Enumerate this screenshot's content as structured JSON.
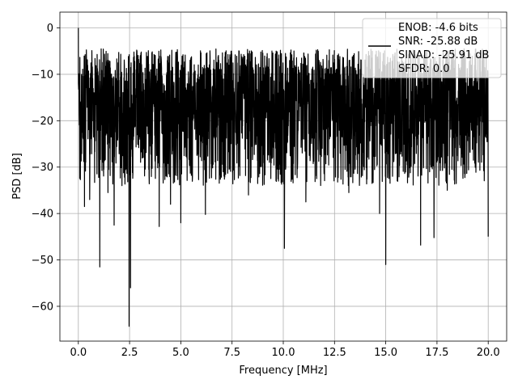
{
  "chart_data": {
    "type": "line",
    "title": "",
    "xlabel": "Frequency [MHz]",
    "ylabel": "PSD [dB]",
    "xlim": [
      -0.9,
      20.9
    ],
    "ylim": [
      -67.5,
      3.4
    ],
    "x_ticks": [
      0.0,
      2.5,
      5.0,
      7.5,
      10.0,
      12.5,
      15.0,
      17.5,
      20.0
    ],
    "x_tick_labels": [
      "0.0",
      "2.5",
      "5.0",
      "7.5",
      "10.0",
      "12.5",
      "15.0",
      "17.5",
      "20.0"
    ],
    "y_ticks": [
      0,
      -10,
      -20,
      -30,
      -40,
      -50,
      -60
    ],
    "y_tick_labels": [
      "0",
      "−10",
      "−20",
      "−30",
      "−40",
      "−50",
      "−60"
    ],
    "grid": true,
    "legend_position": "top-right",
    "legend_lines": [
      "ENOB: -4.6 bits",
      "SNR: -25.88 dB",
      "SINAD: -25.91 dB",
      "SFDR: 0.0"
    ],
    "series": [
      {
        "color": "#000000",
        "x_range": [
          0.0,
          20.0
        ],
        "floor_band_db": [
          -24,
          -8
        ],
        "peak_db": 0.0,
        "deep_nulls": [
          {
            "x": 1.05,
            "y": -51.5
          },
          {
            "x": 1.75,
            "y": -42.5
          },
          {
            "x": 2.48,
            "y": -64.3
          },
          {
            "x": 2.55,
            "y": -56.0
          },
          {
            "x": 0.3,
            "y": -38.5
          },
          {
            "x": 3.95,
            "y": -42.8
          },
          {
            "x": 5.0,
            "y": -42.0
          },
          {
            "x": 6.2,
            "y": -40.2
          },
          {
            "x": 4.5,
            "y": -38.0
          },
          {
            "x": 10.05,
            "y": -47.5
          },
          {
            "x": 15.0,
            "y": -51.0
          },
          {
            "x": 14.7,
            "y": -40.0
          },
          {
            "x": 16.7,
            "y": -46.8
          },
          {
            "x": 17.35,
            "y": -45.2
          },
          {
            "x": 20.0,
            "y": -45.0
          },
          {
            "x": 11.1,
            "y": -37.5
          },
          {
            "x": 13.2,
            "y": -35.5
          },
          {
            "x": 8.3,
            "y": -36.0
          },
          {
            "x": 18.0,
            "y": -35.0
          },
          {
            "x": 0.55,
            "y": -37.0
          },
          {
            "x": 1.45,
            "y": -35.5
          }
        ]
      }
    ]
  }
}
